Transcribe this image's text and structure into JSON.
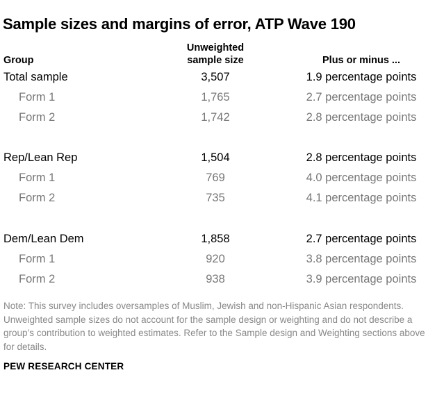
{
  "title": "Sample sizes and margins of error, ATP Wave 190",
  "headers": {
    "group": "Group",
    "n_line1": "Unweighted",
    "n_line2": "sample size",
    "moe": "Plus or minus ..."
  },
  "rows": [
    {
      "group": "Total sample",
      "n": "3,507",
      "moe": "1.9 percentage points",
      "level": "main"
    },
    {
      "group": "Form 1",
      "n": "1,765",
      "moe": "2.7 percentage points",
      "level": "sub"
    },
    {
      "group": "Form 2",
      "n": "1,742",
      "moe": "2.8 percentage points",
      "level": "sub"
    },
    {
      "group": "Rep/Lean Rep",
      "n": "1,504",
      "moe": "2.8 percentage points",
      "level": "main"
    },
    {
      "group": "Form 1",
      "n": "769",
      "moe": "4.0 percentage points",
      "level": "sub"
    },
    {
      "group": "Form 2",
      "n": "735",
      "moe": "4.1 percentage points",
      "level": "sub"
    },
    {
      "group": "Dem/Lean Dem",
      "n": "1,858",
      "moe": "2.7 percentage points",
      "level": "main"
    },
    {
      "group": "Form 1",
      "n": "920",
      "moe": "3.8 percentage points",
      "level": "sub"
    },
    {
      "group": "Form 2",
      "n": "938",
      "moe": "3.9 percentage points",
      "level": "sub"
    }
  ],
  "note": "Note: This survey includes oversamples of Muslim, Jewish and non-Hispanic Asian respondents. Unweighted sample sizes do not account for the sample design or weighting and do not describe a group’s contribution to weighted estimates. Refer to the Sample design and Weighting sections above for details.",
  "source": "PEW RESEARCH CENTER",
  "colors": {
    "text": "#000000",
    "subtext": "#777777",
    "note": "#888888"
  }
}
